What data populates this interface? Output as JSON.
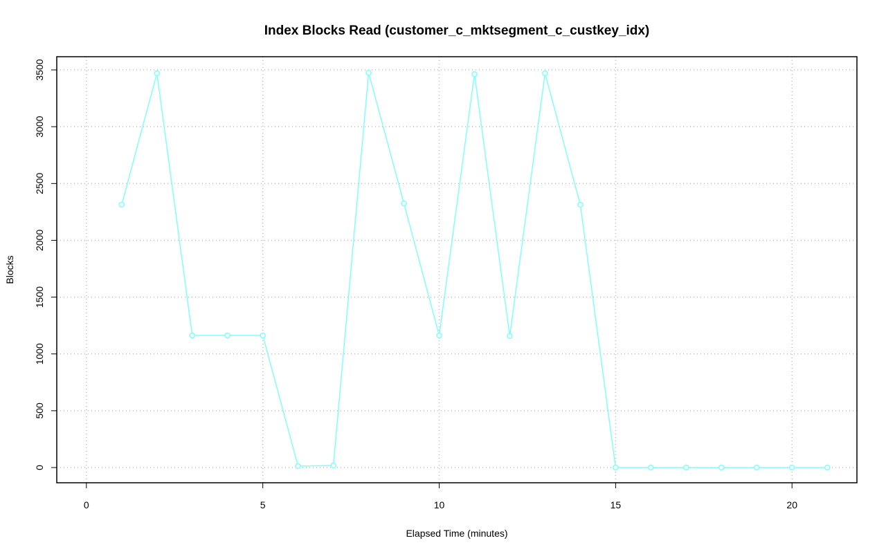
{
  "chart_data": {
    "type": "line",
    "title": "Index Blocks Read (customer_c_mktsegment_c_custkey_idx)",
    "x_label": "Elapsed Time (minutes)",
    "y_label": "Blocks",
    "series": [
      {
        "color": "#7fffff",
        "x": [
          1,
          2,
          3,
          4,
          5,
          6,
          7,
          8,
          9,
          10,
          11,
          12,
          13,
          14,
          15,
          16,
          17,
          18,
          19,
          20,
          21
        ],
        "values": [
          2313,
          3470,
          1163,
          1163,
          1163,
          12,
          18,
          3475,
          2325,
          1163,
          3463,
          1157,
          3470,
          2313,
          0,
          0,
          0,
          0,
          0,
          0,
          0
        ]
      }
    ],
    "xlim": [
      -0.84,
      21.84
    ],
    "xticks": [
      0,
      5,
      10,
      15,
      20
    ],
    "ylim": [
      -134,
      3616
    ],
    "yticks": [
      0,
      500,
      1000,
      1500,
      2000,
      2500,
      3000,
      3500
    ],
    "grid": true
  }
}
